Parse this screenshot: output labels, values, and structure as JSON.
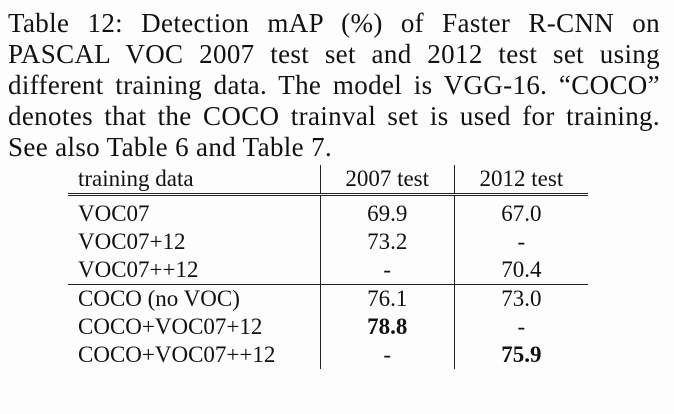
{
  "caption": {
    "text": "Table 12: Detection mAP (%) of Faster R-CNN on PASCAL VOC 2007 test set and 2012 test set using different training data. The model is VGG-16. “COCO” denotes that the COCO trainval set is used for training. See also Table 6 and Table 7."
  },
  "table": {
    "headers": {
      "training_data": "training data",
      "test_2007": "2007 test",
      "test_2012": "2012 test"
    },
    "rows": [
      {
        "training_data": "VOC07",
        "test_2007": "69.9",
        "test_2012": "67.0"
      },
      {
        "training_data": "VOC07+12",
        "test_2007": "73.2",
        "test_2012": "-"
      },
      {
        "training_data": "VOC07++12",
        "test_2007": "-",
        "test_2012": "70.4"
      },
      {
        "training_data": "COCO (no VOC)",
        "test_2007": "76.1",
        "test_2012": "73.0"
      },
      {
        "training_data": "COCO+VOC07+12",
        "test_2007": "78.8",
        "test_2012": "-"
      },
      {
        "training_data": "COCO+VOC07++12",
        "test_2007": "-",
        "test_2012": "75.9"
      }
    ]
  }
}
